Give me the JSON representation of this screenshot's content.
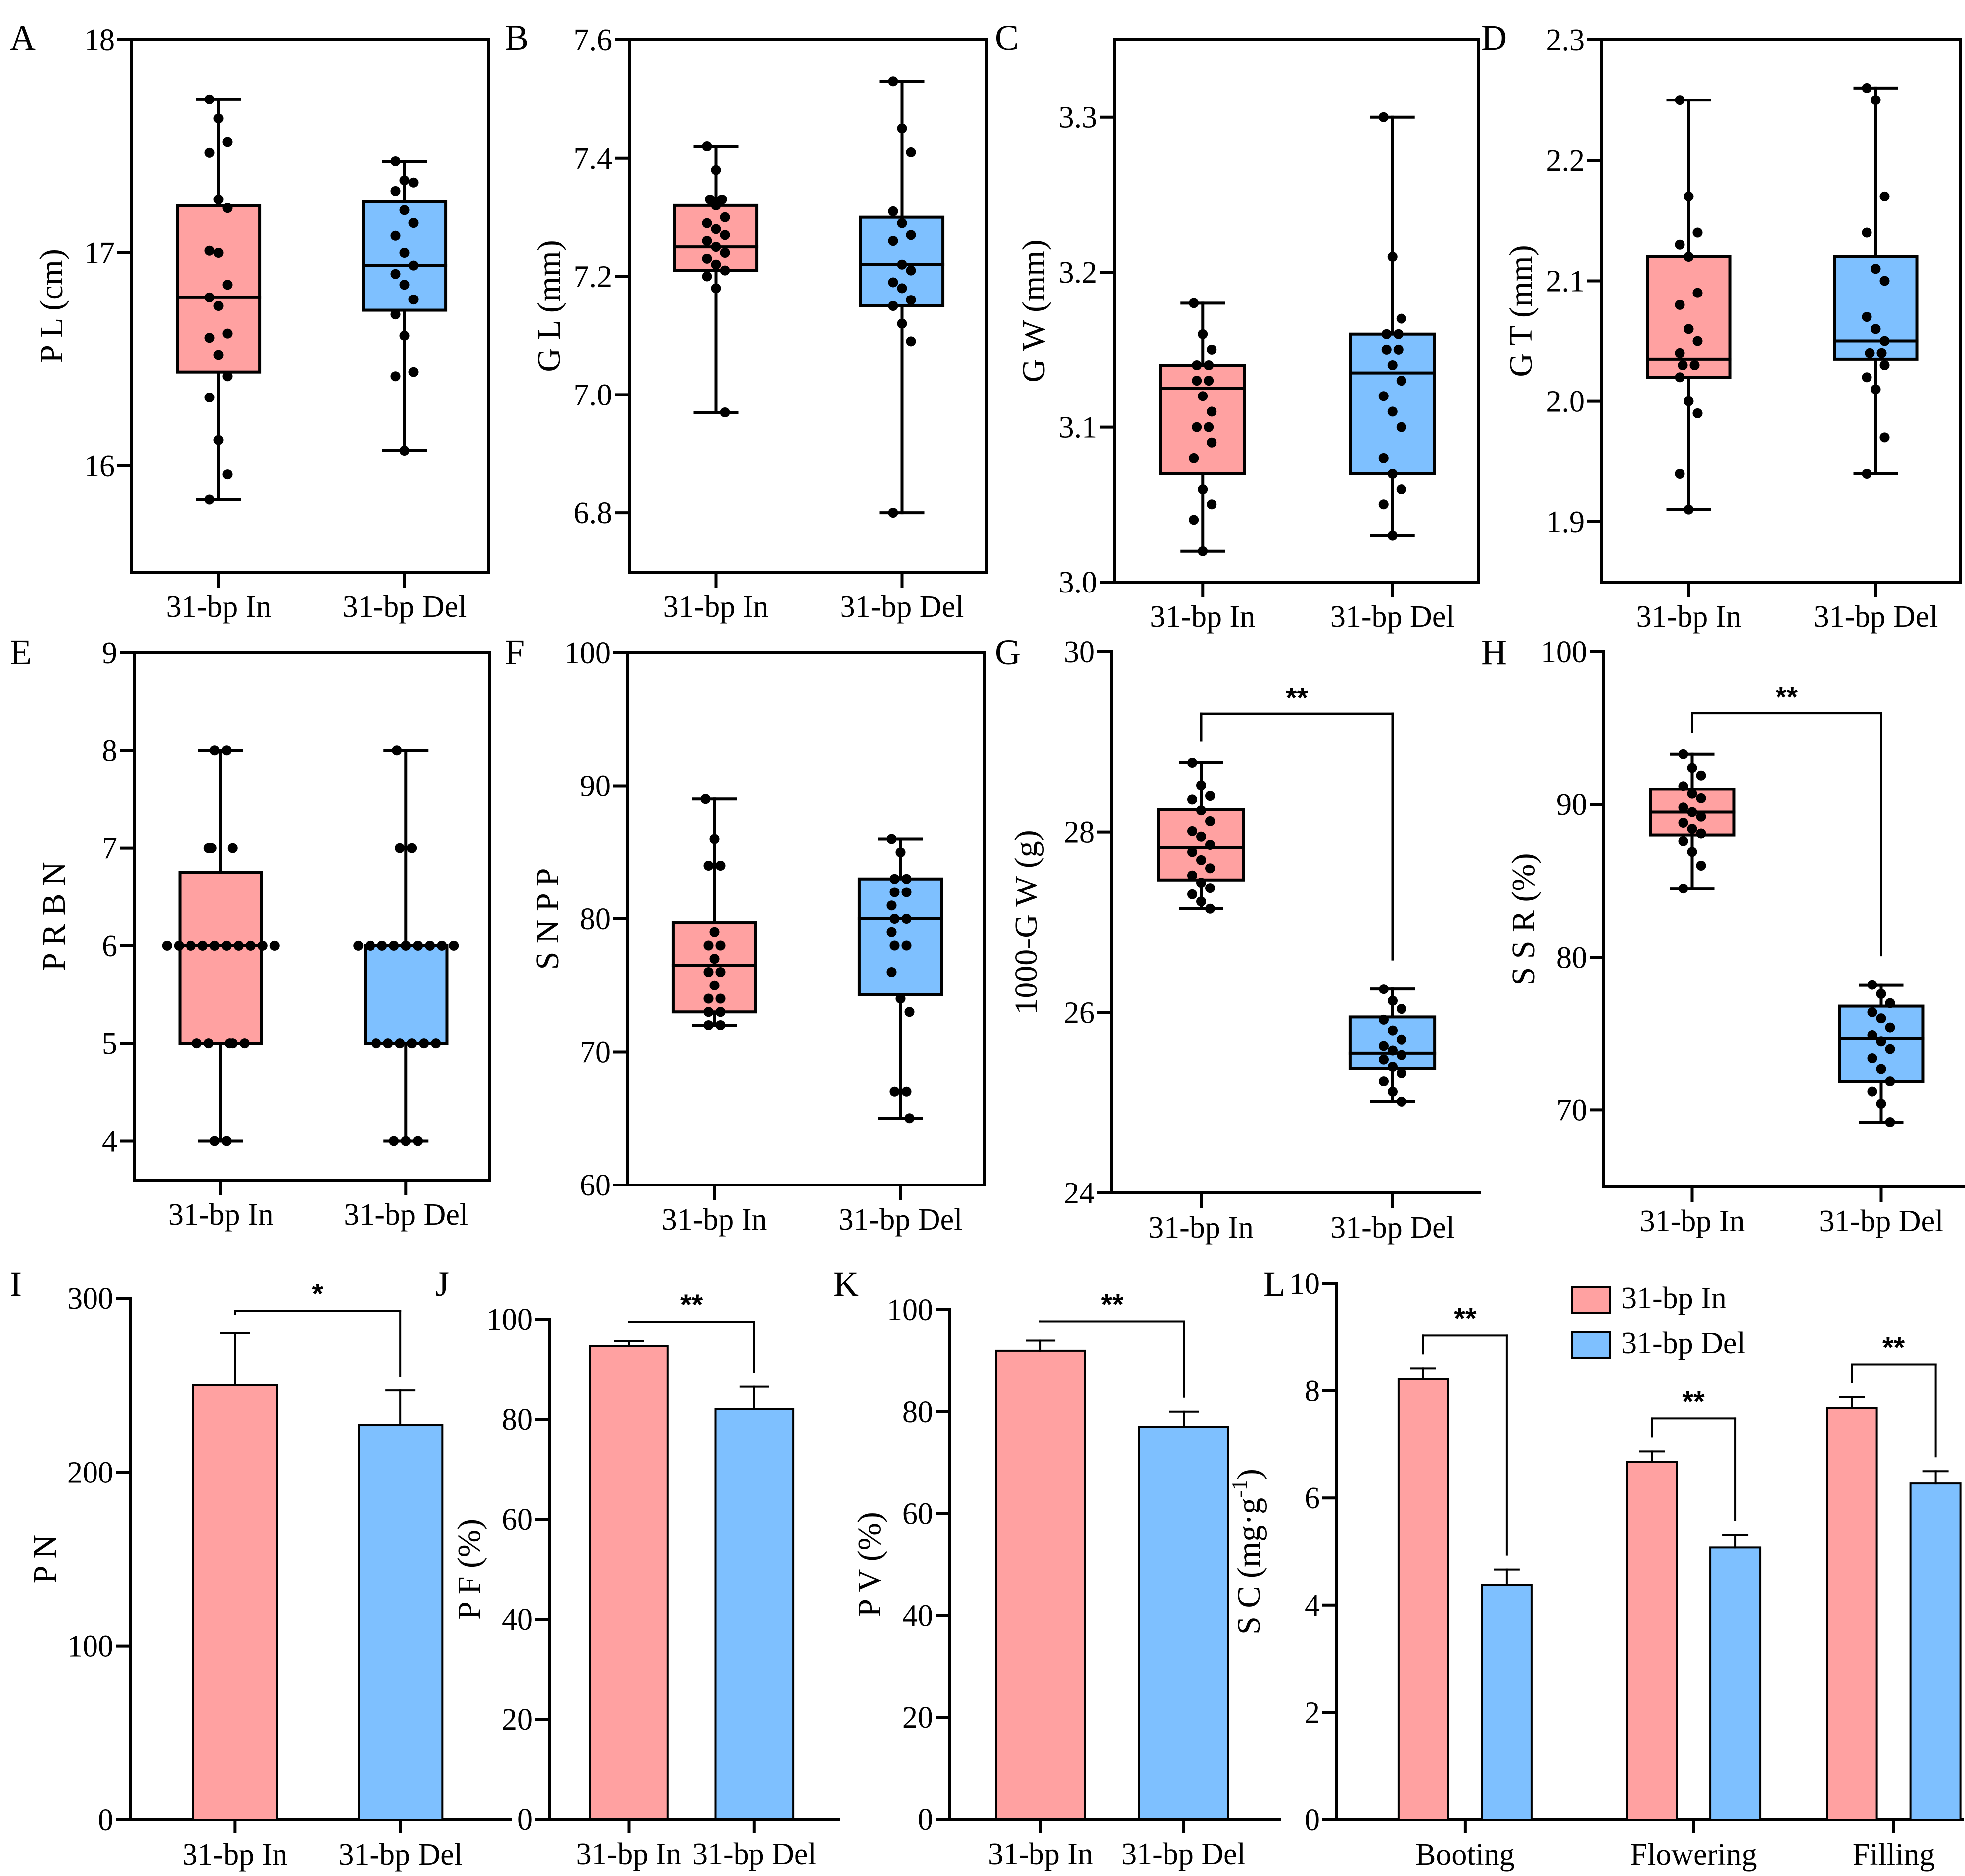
{
  "colors": {
    "in": "#FFA1A1",
    "del": "#7EC0FF",
    "axis": "#000000"
  },
  "chart_data": [
    {
      "id": "A",
      "panel_letter": "A",
      "type": "box",
      "frame": true,
      "ylabel": "P L (cm)",
      "ylim": [
        15.5,
        18
      ],
      "yticks": [
        "16",
        "17",
        "18"
      ],
      "categories": [
        "31-bp In",
        "31-bp Del"
      ],
      "series": [
        {
          "name": "31-bp In",
          "min": 15.84,
          "q1": 16.44,
          "median": 16.79,
          "q3": 17.22,
          "max": 17.72,
          "points": [
            17.72,
            17.63,
            17.52,
            17.47,
            17.25,
            17.21,
            17.01,
            17.0,
            16.85,
            16.79,
            16.75,
            16.62,
            16.6,
            16.52,
            16.42,
            16.32,
            16.12,
            15.96,
            15.84
          ]
        },
        {
          "name": "31-bp Del",
          "min": 16.07,
          "q1": 16.73,
          "median": 16.94,
          "q3": 17.24,
          "max": 17.43,
          "points": [
            17.43,
            17.34,
            17.33,
            17.29,
            17.2,
            17.14,
            17.08,
            17.0,
            16.94,
            16.9,
            16.85,
            16.78,
            16.71,
            16.61,
            16.44,
            16.42,
            16.07
          ]
        }
      ]
    },
    {
      "id": "B",
      "panel_letter": "B",
      "type": "box",
      "frame": true,
      "ylabel": "G L (mm)",
      "ylim": [
        6.7,
        7.6
      ],
      "yticks": [
        "6.8",
        "7.0",
        "7.2",
        "7.4",
        "7.6"
      ],
      "categories": [
        "31-bp In",
        "31-bp Del"
      ],
      "series": [
        {
          "name": "31-bp In",
          "min": 6.97,
          "q1": 7.21,
          "median": 7.25,
          "q3": 7.32,
          "max": 7.42,
          "points": [
            7.42,
            7.38,
            7.33,
            7.33,
            7.32,
            7.3,
            7.29,
            7.28,
            7.27,
            7.26,
            7.25,
            7.24,
            7.23,
            7.22,
            7.21,
            7.2,
            7.18,
            6.97
          ]
        },
        {
          "name": "31-bp Del",
          "min": 6.8,
          "q1": 7.15,
          "median": 7.22,
          "q3": 7.3,
          "max": 7.53,
          "points": [
            7.53,
            7.45,
            7.41,
            7.31,
            7.29,
            7.27,
            7.26,
            7.22,
            7.21,
            7.19,
            7.18,
            7.16,
            7.15,
            7.12,
            7.09,
            6.8
          ]
        }
      ]
    },
    {
      "id": "C",
      "panel_letter": "C",
      "type": "box",
      "frame": true,
      "ylabel": "G W (mm)",
      "ylim": [
        3.0,
        3.35
      ],
      "yticks": [
        "3.0",
        "3.1",
        "3.2",
        "3.3"
      ],
      "categories": [
        "31-bp In",
        "31-bp Del"
      ],
      "series": [
        {
          "name": "31-bp In",
          "min": 3.02,
          "q1": 3.07,
          "median": 3.125,
          "q3": 3.14,
          "max": 3.18,
          "points": [
            3.18,
            3.16,
            3.15,
            3.14,
            3.14,
            3.13,
            3.13,
            3.12,
            3.11,
            3.1,
            3.1,
            3.09,
            3.08,
            3.06,
            3.05,
            3.04,
            3.02
          ]
        },
        {
          "name": "31-bp Del",
          "min": 3.03,
          "q1": 3.07,
          "median": 3.135,
          "q3": 3.16,
          "max": 3.3,
          "points": [
            3.3,
            3.21,
            3.17,
            3.16,
            3.16,
            3.15,
            3.15,
            3.14,
            3.13,
            3.12,
            3.11,
            3.1,
            3.08,
            3.07,
            3.06,
            3.05,
            3.03
          ]
        }
      ]
    },
    {
      "id": "D",
      "panel_letter": "D",
      "type": "box",
      "frame": true,
      "ylabel": "G T (mm)",
      "ylim": [
        1.85,
        2.3
      ],
      "yticks": [
        "1.9",
        "2.0",
        "2.1",
        "2.2",
        "2.3"
      ],
      "categories": [
        "31-bp In",
        "31-bp Del"
      ],
      "series": [
        {
          "name": "31-bp In",
          "min": 1.91,
          "q1": 2.02,
          "median": 2.035,
          "q3": 2.12,
          "max": 2.25,
          "points": [
            2.25,
            2.17,
            2.14,
            2.13,
            2.12,
            2.09,
            2.08,
            2.06,
            2.05,
            2.04,
            2.03,
            2.03,
            2.02,
            2.0,
            1.99,
            1.94,
            1.91
          ]
        },
        {
          "name": "31-bp Del",
          "min": 1.94,
          "q1": 2.035,
          "median": 2.05,
          "q3": 2.12,
          "max": 2.26,
          "points": [
            2.26,
            2.25,
            2.17,
            2.14,
            2.11,
            2.1,
            2.07,
            2.06,
            2.05,
            2.04,
            2.04,
            2.03,
            2.02,
            2.01,
            1.97,
            1.94
          ]
        }
      ]
    },
    {
      "id": "E",
      "panel_letter": "E",
      "type": "box",
      "frame": true,
      "ylabel": "P R B N",
      "ylim": [
        3.6,
        9
      ],
      "yticks": [
        "4",
        "5",
        "6",
        "7",
        "8",
        "9"
      ],
      "categories": [
        "31-bp In",
        "31-bp Del"
      ],
      "series": [
        {
          "name": "31-bp In",
          "min": 4,
          "q1": 5,
          "median": 6,
          "q3": 6.75,
          "max": 8,
          "points": [
            8,
            8,
            7,
            7,
            7,
            6,
            6,
            6,
            6,
            6,
            6,
            6,
            6,
            6,
            6,
            5,
            5,
            5,
            5,
            5,
            4,
            4
          ]
        },
        {
          "name": "31-bp Del",
          "min": 4,
          "q1": 5,
          "median": 6,
          "q3": 6,
          "max": 8,
          "points": [
            8,
            7,
            7,
            6,
            6,
            6,
            6,
            6,
            6,
            6,
            6,
            6,
            5,
            5,
            5,
            5,
            5,
            5,
            4,
            4,
            4
          ]
        }
      ]
    },
    {
      "id": "F",
      "panel_letter": "F",
      "type": "box",
      "frame": true,
      "ylabel": "S N P P",
      "ylim": [
        60,
        100
      ],
      "yticks": [
        "60",
        "70",
        "80",
        "90",
        "100"
      ],
      "categories": [
        "31-bp In",
        "31-bp Del"
      ],
      "series": [
        {
          "name": "31-bp In",
          "min": 72,
          "q1": 73,
          "median": 76.5,
          "q3": 79.7,
          "max": 89,
          "points": [
            89,
            86,
            84,
            84,
            79,
            78,
            78,
            77,
            76,
            76,
            75,
            74,
            74,
            73,
            73,
            72,
            72
          ]
        },
        {
          "name": "31-bp Del",
          "min": 65,
          "q1": 74.3,
          "median": 80,
          "q3": 83,
          "max": 86,
          "points": [
            86,
            85,
            83,
            83,
            82,
            82,
            81,
            80,
            80,
            79,
            78,
            78,
            76,
            74,
            73,
            67,
            67,
            65
          ]
        }
      ]
    },
    {
      "id": "G",
      "panel_letter": "G",
      "type": "box",
      "frame": false,
      "ylabel": "1000-G W (g)",
      "ylim": [
        24,
        30
      ],
      "yticks": [
        "24",
        "26",
        "28",
        "30"
      ],
      "categories": [
        "31-bp In",
        "31-bp Del"
      ],
      "significance": "**",
      "series": [
        {
          "name": "31-bp In",
          "min": 27.15,
          "q1": 27.47,
          "median": 27.83,
          "q3": 28.25,
          "max": 28.77,
          "points": [
            28.77,
            28.52,
            28.4,
            28.36,
            28.24,
            28.12,
            28.01,
            27.95,
            27.86,
            27.78,
            27.69,
            27.6,
            27.52,
            27.44,
            27.38,
            27.31,
            27.23,
            27.15
          ]
        },
        {
          "name": "31-bp Del",
          "min": 25.01,
          "q1": 25.38,
          "median": 25.55,
          "q3": 25.95,
          "max": 26.26,
          "points": [
            26.26,
            26.13,
            26.04,
            25.92,
            25.8,
            25.7,
            25.63,
            25.58,
            25.53,
            25.48,
            25.4,
            25.33,
            25.24,
            25.12,
            25.01
          ]
        }
      ]
    },
    {
      "id": "H",
      "panel_letter": "H",
      "type": "box",
      "frame": false,
      "ylabel": "S S R (%)",
      "ylim": [
        65,
        100
      ],
      "yticks": [
        "70",
        "80",
        "90",
        "100"
      ],
      "categories": [
        "31-bp In",
        "31-bp Del"
      ],
      "significance": "**",
      "series": [
        {
          "name": "31-bp In",
          "min": 84.5,
          "q1": 88.0,
          "median": 89.5,
          "q3": 91.0,
          "max": 93.3,
          "points": [
            93.3,
            92.4,
            91.9,
            91.2,
            90.7,
            90.4,
            89.8,
            89.5,
            89.2,
            88.8,
            88.4,
            88.1,
            87.6,
            86.9,
            86.0,
            84.5
          ]
        },
        {
          "name": "31-bp Del",
          "min": 69.2,
          "q1": 71.9,
          "median": 74.7,
          "q3": 76.8,
          "max": 78.2,
          "points": [
            78.2,
            77.6,
            77.0,
            76.4,
            76.0,
            75.4,
            74.9,
            74.5,
            74.0,
            73.4,
            72.7,
            71.9,
            71.2,
            70.4,
            69.2
          ]
        }
      ]
    },
    {
      "id": "I",
      "panel_letter": "I",
      "type": "bar",
      "frame": false,
      "ylabel": "P N",
      "ylim": [
        0,
        300
      ],
      "yticks": [
        "0",
        "100",
        "200",
        "300"
      ],
      "categories": [
        "31-bp In",
        "31-bp Del"
      ],
      "significance": "*",
      "series": [
        {
          "name": "31-bp In",
          "value": 250,
          "error": 30
        },
        {
          "name": "31-bp Del",
          "value": 227,
          "error": 20
        }
      ]
    },
    {
      "id": "J",
      "panel_letter": "J",
      "type": "bar",
      "frame": false,
      "ylabel": "P F (%)",
      "ylim": [
        0,
        100
      ],
      "yticks": [
        "0",
        "20",
        "40",
        "60",
        "80",
        "100"
      ],
      "categories": [
        "31-bp In",
        "31-bp Del"
      ],
      "significance": "**",
      "series": [
        {
          "name": "31-bp In",
          "value": 94.7,
          "error": 1.0
        },
        {
          "name": "31-bp Del",
          "value": 82.0,
          "error": 4.5
        }
      ]
    },
    {
      "id": "K",
      "panel_letter": "K",
      "type": "bar",
      "frame": false,
      "ylabel": "P V (%)",
      "ylim": [
        0,
        100
      ],
      "yticks": [
        "0",
        "20",
        "40",
        "60",
        "80",
        "100"
      ],
      "categories": [
        "31-bp In",
        "31-bp Del"
      ],
      "significance": "**",
      "series": [
        {
          "name": "31-bp In",
          "value": 92.0,
          "error": 2.0
        },
        {
          "name": "31-bp Del",
          "value": 77.0,
          "error": 3.0
        }
      ]
    },
    {
      "id": "L",
      "panel_letter": "L",
      "type": "bar",
      "frame": false,
      "ylabel": "S C (mg·g",
      "ylabel_sup": "-1",
      "ylabel_close": ")",
      "ylim": [
        0,
        10
      ],
      "yticks": [
        "0",
        "2",
        "4",
        "6",
        "8",
        "10"
      ],
      "categories": [
        "Booting",
        "Flowering",
        "Filling"
      ],
      "significance": [
        "**",
        "**",
        "**"
      ],
      "legend": [
        "31-bp In",
        "31-bp Del"
      ],
      "series": [
        {
          "name": "31-bp In",
          "values": [
            8.22,
            6.67,
            7.68
          ],
          "errors": [
            0.2,
            0.2,
            0.2
          ]
        },
        {
          "name": "31-bp Del",
          "values": [
            4.37,
            5.08,
            6.27
          ],
          "errors": [
            0.3,
            0.23,
            0.23
          ]
        }
      ]
    }
  ]
}
